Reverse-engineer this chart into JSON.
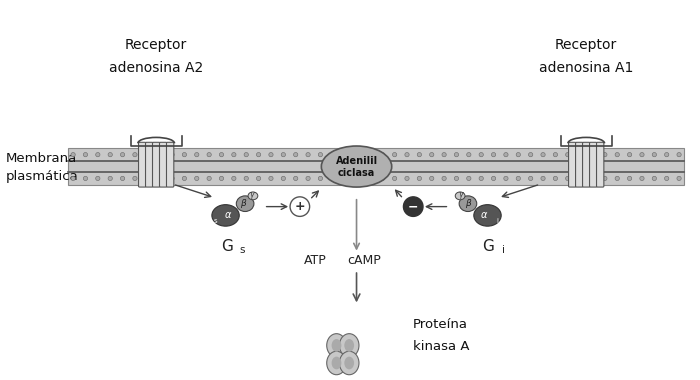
{
  "bg_color": "#ffffff",
  "colors": {
    "dark_gray": "#404040",
    "mid_gray": "#808080",
    "light_gray": "#b0b0b0",
    "very_light": "#d8d8d8",
    "membrane_bg": "#c8c8c8",
    "protein_dark": "#555555",
    "protein_mid": "#999999",
    "adenilil_color": "#b0b0b0"
  },
  "labels": {
    "receptor_A2_line1": "Receptor",
    "receptor_A2_line2": "adenosina A2",
    "receptor_A1_line1": "Receptor",
    "receptor_A1_line2": "adenosina A1",
    "membrana_line1": "Membrana",
    "membrana_line2": "plasmática",
    "adenilil_line1": "Adenilil",
    "adenilil_line2": "ciclasa",
    "Gs": "G",
    "gs_sub": "s",
    "Gi": "G",
    "gi_sub": "i",
    "ATP": "ATP",
    "cAMP": "cAMP",
    "proteina_line1": "Proteína",
    "proteina_line2": "kinasa A"
  }
}
